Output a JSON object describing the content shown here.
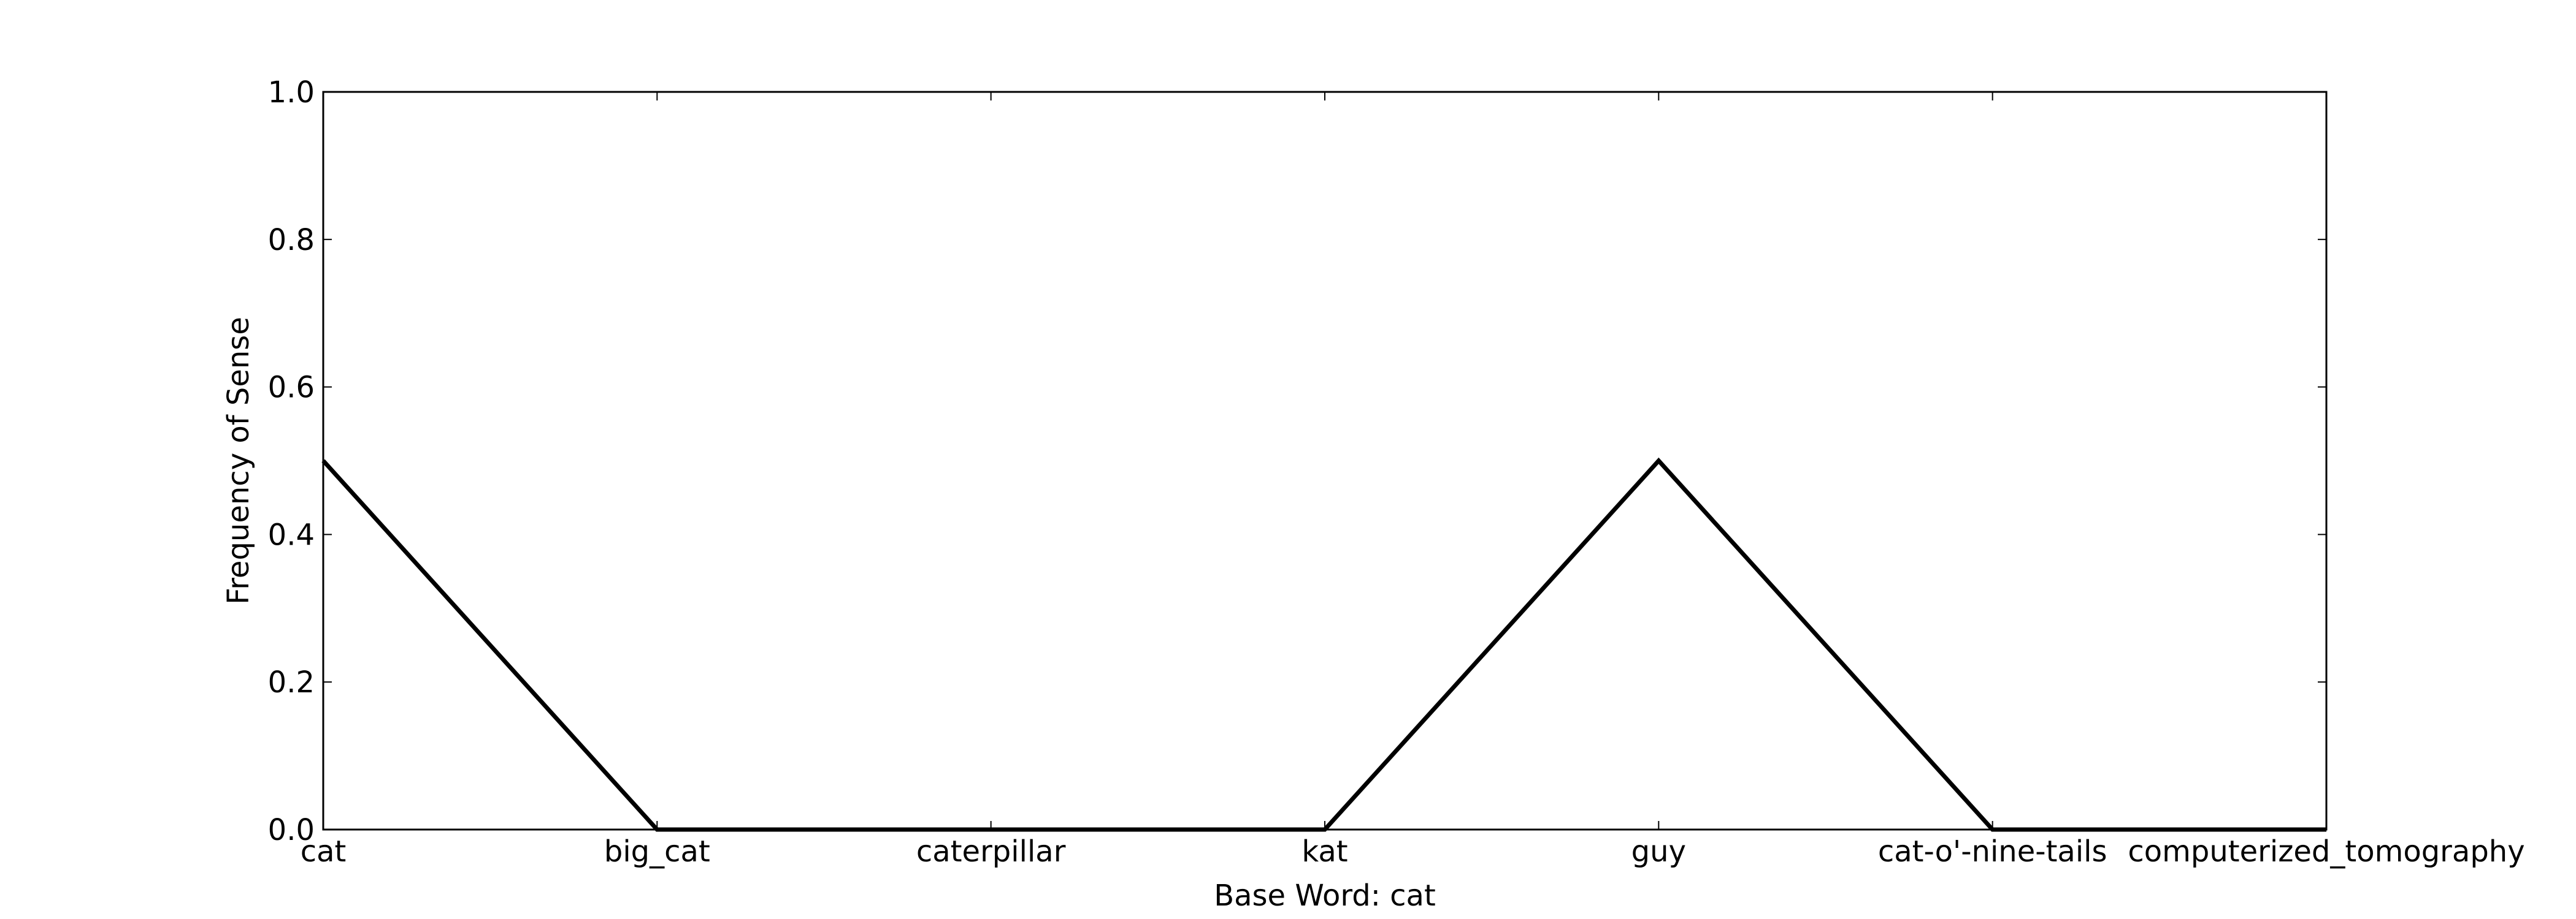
{
  "chart_data": {
    "type": "line",
    "title": "",
    "xlabel": "Base Word: cat",
    "ylabel": "Frequency of Sense",
    "categories": [
      "cat",
      "big_cat",
      "caterpillar",
      "kat",
      "guy",
      "cat-o'-nine-tails",
      "computerized_tomography"
    ],
    "series": [
      {
        "values": [
          0.5,
          0.0,
          0.0,
          0.0,
          0.5,
          0.0,
          0.0
        ],
        "color": "#000000"
      }
    ],
    "ylim": [
      0.0,
      1.0
    ],
    "yticks": [
      "0.0",
      "0.2",
      "0.4",
      "0.6",
      "0.8",
      "1.0"
    ],
    "grid": false,
    "legend": "none"
  }
}
